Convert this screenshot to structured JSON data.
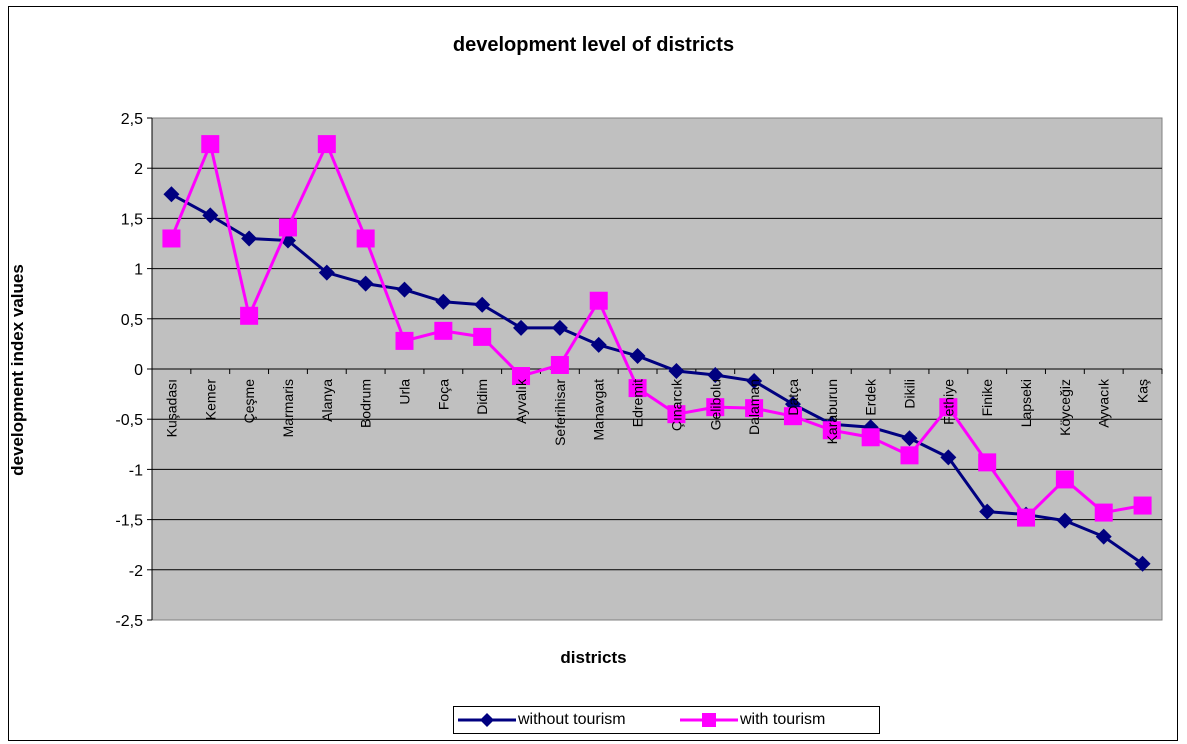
{
  "chart_data": {
    "type": "line",
    "title": "development level of districts",
    "xlabel": "districts",
    "ylabel": "development index values",
    "ylim": [
      -2.5,
      2.5
    ],
    "yticks": [
      "2,5",
      "2",
      "1,5",
      "1",
      "0,5",
      "0",
      "-0,5",
      "-1",
      "-1,5",
      "-2",
      "-2,5"
    ],
    "categories": [
      "Kuşadası",
      "Kemer",
      "Çeşme",
      "Marmaris",
      "Alanya",
      "Bodrum",
      "Urla",
      "Foça",
      "Didim",
      "Ayvalık",
      "Seferihisar",
      "Manavgat",
      "Edremit",
      "Çınarcık",
      "Gelibolu",
      "Dalaman",
      "Datça",
      "Karaburun",
      "Erdek",
      "Dikili",
      "Fethiye",
      "Finike",
      "Lapseki",
      "Köyceğiz",
      "Ayvacık",
      "Kaş"
    ],
    "series": [
      {
        "name": "without tourism",
        "color": "#000080",
        "marker": "diamond",
        "values": [
          1.74,
          1.53,
          1.3,
          1.28,
          0.96,
          0.85,
          0.79,
          0.67,
          0.64,
          0.41,
          0.41,
          0.24,
          0.13,
          -0.02,
          -0.06,
          -0.12,
          -0.35,
          -0.55,
          -0.58,
          -0.69,
          -0.88,
          -1.42,
          -1.45,
          -1.51,
          -1.67,
          -1.94
        ]
      },
      {
        "name": "with tourism",
        "color": "#FF00FF",
        "marker": "square",
        "values": [
          1.3,
          2.24,
          0.53,
          1.41,
          2.24,
          1.3,
          0.28,
          0.38,
          0.32,
          -0.07,
          0.04,
          0.68,
          -0.19,
          -0.45,
          -0.38,
          -0.39,
          -0.47,
          -0.61,
          -0.68,
          -0.86,
          -0.38,
          -0.93,
          -1.48,
          -1.1,
          -1.43,
          -1.36
        ]
      }
    ],
    "grid": true,
    "plot_background": "#C0C0C0",
    "legend_position": "bottom"
  }
}
